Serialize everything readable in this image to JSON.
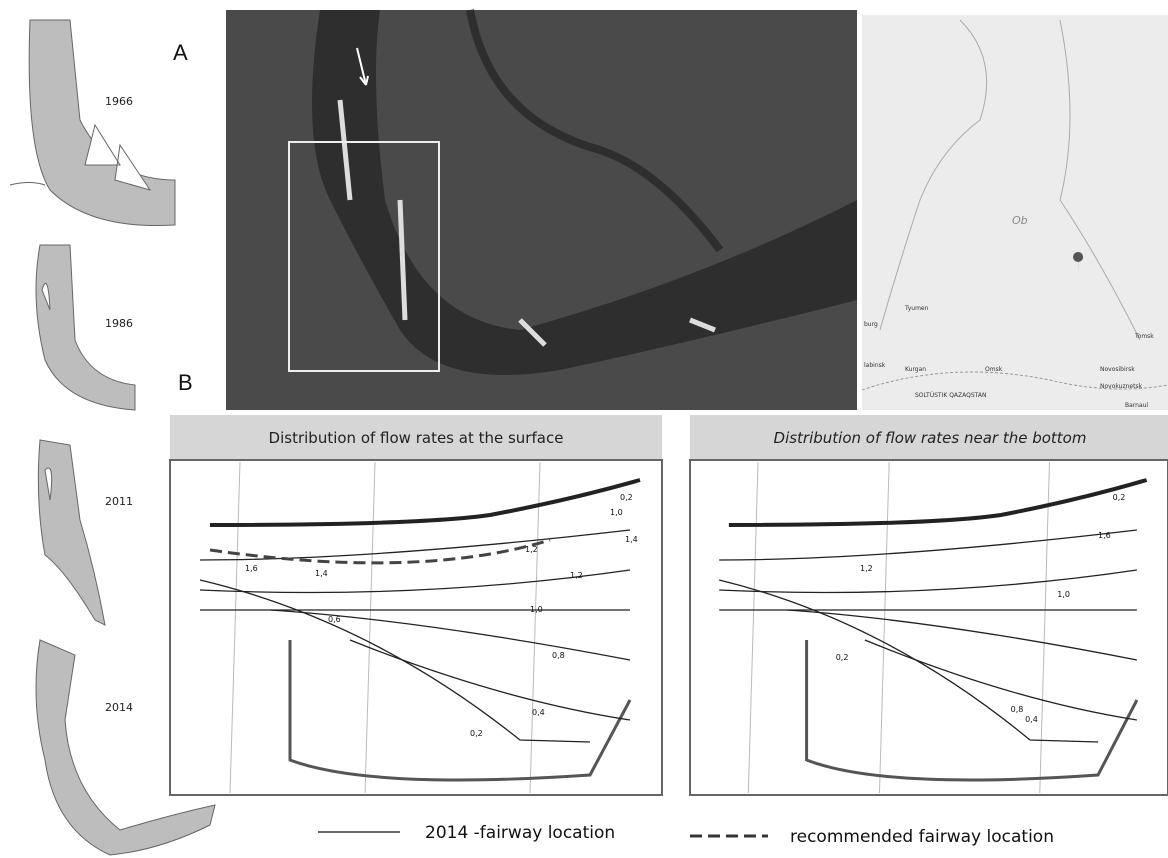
{
  "labels": {
    "a": "A",
    "b": "B"
  },
  "history": {
    "years": [
      "1966",
      "1986",
      "2011",
      "2014"
    ]
  },
  "locator_map": {
    "river": "Ob",
    "places": [
      "burg",
      "Tyumen",
      "labinsk",
      "Kurgan",
      "Omsk",
      "Tomsk",
      "Novosibirsk",
      "Novokuznetsk",
      "Barnaul",
      "SOLTÚSTIK QAZAQSTAN"
    ]
  },
  "surface_panel": {
    "title": "Distribution of flow rates  at the surface",
    "contour_labels": [
      "0,2",
      "1,0",
      "1,4",
      "1,2",
      "1,6",
      "1,4",
      "1,2",
      "1,0",
      "0,6",
      "0,8",
      "0,4",
      "0,2"
    ]
  },
  "bottom_panel": {
    "title": "Distribution of flow rates near the bottom",
    "contour_labels": [
      "0,2",
      "1,6",
      "1,2",
      "1,0",
      "0,2",
      "0,8",
      "0,4"
    ]
  },
  "legend": {
    "fairway_2014": "2014 -fairway location",
    "recommended": "recommended  fairway location"
  }
}
